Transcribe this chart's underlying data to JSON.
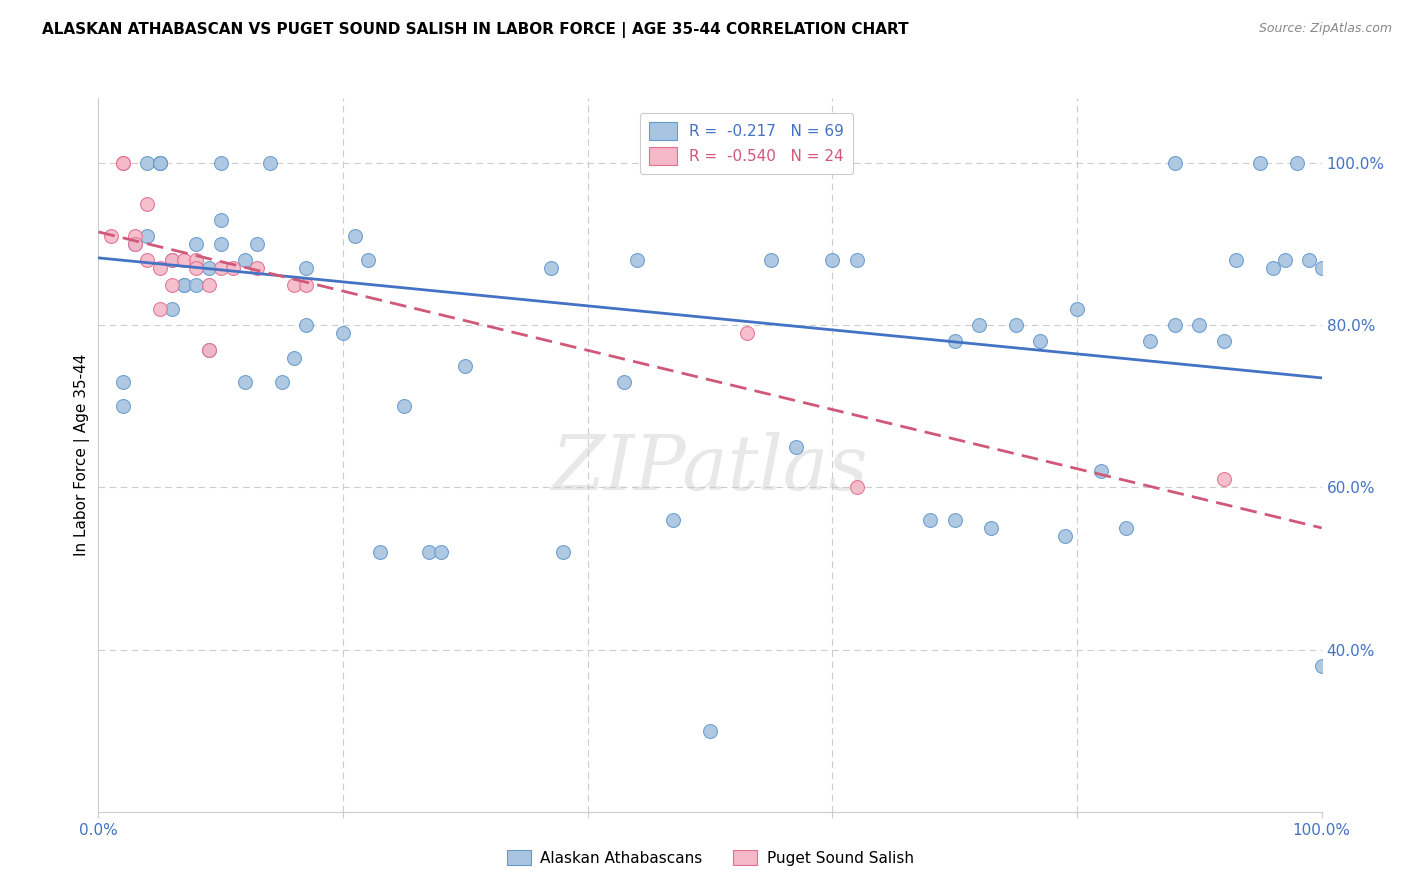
{
  "title": "ALASKAN ATHABASCAN VS PUGET SOUND SALISH IN LABOR FORCE | AGE 35-44 CORRELATION CHART",
  "source": "Source: ZipAtlas.com",
  "ylabel": "In Labor Force | Age 35-44",
  "xlim": [
    0,
    1
  ],
  "ylim": [
    0.2,
    1.08
  ],
  "xticks": [
    0.0,
    0.2,
    0.4,
    0.6,
    0.8,
    1.0
  ],
  "xtick_labels": [
    "0.0%",
    "",
    "",
    "",
    "",
    "100.0%"
  ],
  "ytick_positions_right": [
    1.0,
    0.8,
    0.6,
    0.4
  ],
  "ytick_labels_right": [
    "100.0%",
    "80.0%",
    "60.0%",
    "40.0%"
  ],
  "legend_r1": "R =  -0.217",
  "legend_n1": "N = 69",
  "legend_r2": "R =  -0.540",
  "legend_n2": "N = 24",
  "blue_fill": "#a8c4e0",
  "blue_edge": "#6699cc",
  "pink_fill": "#f4b8c8",
  "pink_edge": "#e07090",
  "line_blue": "#4472c4",
  "line_pink": "#d05878",
  "watermark": "ZIPatlas",
  "grid_color": "#cccccc",
  "blue_scatter_x": [
    0.02,
    0.02,
    0.03,
    0.04,
    0.04,
    0.05,
    0.05,
    0.05,
    0.06,
    0.06,
    0.07,
    0.07,
    0.08,
    0.08,
    0.09,
    0.09,
    0.1,
    0.1,
    0.1,
    0.12,
    0.12,
    0.13,
    0.14,
    0.15,
    0.16,
    0.17,
    0.17,
    0.2,
    0.21,
    0.22,
    0.23,
    0.25,
    0.27,
    0.28,
    0.3,
    0.37,
    0.38,
    0.43,
    0.44,
    0.47,
    0.5,
    0.55,
    0.57,
    0.6,
    0.62,
    0.68,
    0.7,
    0.7,
    0.72,
    0.73,
    0.75,
    0.77,
    0.79,
    0.8,
    0.82,
    0.84,
    0.86,
    0.88,
    0.88,
    0.9,
    0.92,
    0.93,
    0.95,
    0.96,
    0.97,
    0.98,
    0.99,
    1.0,
    1.0
  ],
  "blue_scatter_y": [
    0.73,
    0.7,
    0.9,
    1.0,
    0.91,
    1.0,
    1.0,
    1.0,
    0.88,
    0.82,
    0.85,
    0.85,
    0.9,
    0.85,
    0.87,
    0.77,
    0.93,
    0.9,
    1.0,
    0.88,
    0.73,
    0.9,
    1.0,
    0.73,
    0.76,
    0.8,
    0.87,
    0.79,
    0.91,
    0.88,
    0.52,
    0.7,
    0.52,
    0.52,
    0.75,
    0.87,
    0.52,
    0.73,
    0.88,
    0.56,
    0.3,
    0.88,
    0.65,
    0.88,
    0.88,
    0.56,
    0.56,
    0.78,
    0.8,
    0.55,
    0.8,
    0.78,
    0.54,
    0.82,
    0.62,
    0.55,
    0.78,
    0.8,
    1.0,
    0.8,
    0.78,
    0.88,
    1.0,
    0.87,
    0.88,
    1.0,
    0.88,
    0.38,
    0.87
  ],
  "pink_scatter_x": [
    0.01,
    0.02,
    0.02,
    0.03,
    0.03,
    0.04,
    0.04,
    0.05,
    0.05,
    0.06,
    0.06,
    0.07,
    0.08,
    0.08,
    0.09,
    0.09,
    0.1,
    0.11,
    0.13,
    0.16,
    0.17,
    0.53,
    0.62,
    0.92
  ],
  "pink_scatter_y": [
    0.91,
    1.0,
    1.0,
    0.91,
    0.9,
    0.95,
    0.88,
    0.87,
    0.82,
    0.88,
    0.85,
    0.88,
    0.88,
    0.87,
    0.85,
    0.77,
    0.87,
    0.87,
    0.87,
    0.85,
    0.85,
    0.79,
    0.6,
    0.61
  ],
  "blue_line_x": [
    0.0,
    1.0
  ],
  "blue_line_y": [
    0.883,
    0.735
  ],
  "pink_line_x": [
    0.0,
    1.0
  ],
  "pink_line_y": [
    0.915,
    0.55
  ]
}
